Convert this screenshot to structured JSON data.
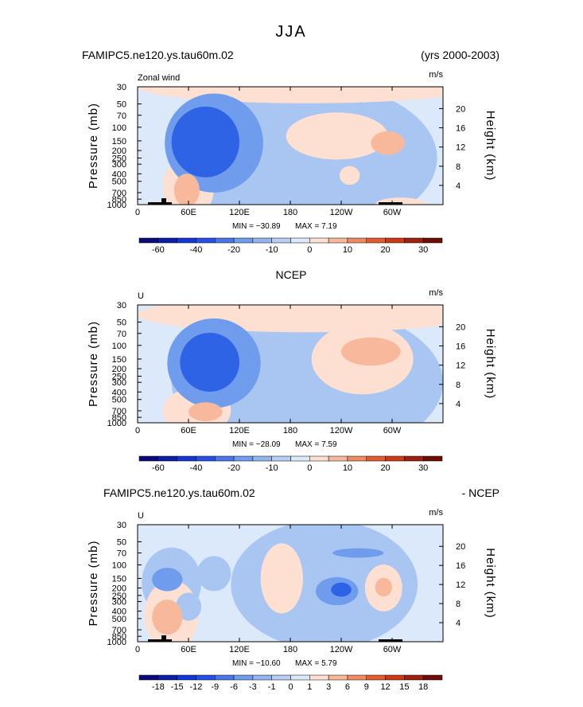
{
  "figure_title": "JJA",
  "chart_data": [
    {
      "type": "heatmap",
      "panel": "model",
      "left_title": "FAMIPC5.ne120.ys.tau60m.02",
      "right_title": "(yrs 2000-2003)",
      "subtitle": "Zonal wind",
      "units": "m/s",
      "ylabel": "Pressure (mb)",
      "ylabel2": "Height (km)",
      "x_ticks": [
        "0",
        "60E",
        "120E",
        "180",
        "120W",
        "60W"
      ],
      "y_ticks": [
        "30",
        "50",
        "70",
        "100",
        "150",
        "200",
        "250",
        "300",
        "400",
        "500",
        "700",
        "850",
        "1000"
      ],
      "y2_ticks": [
        "20",
        "16",
        "12",
        "8",
        "4"
      ],
      "min_label": "MIN = −30.89",
      "max_label": "MAX =   7.19",
      "min": -30.89,
      "max": 7.19,
      "colorbar_labels": [
        "-60",
        "-40",
        "-20",
        "-10",
        "0",
        "10",
        "20",
        "30"
      ],
      "colorbar_levels": [
        -70,
        -60,
        -50,
        -40,
        -30,
        -20,
        -15,
        -10,
        -5,
        0,
        5,
        10,
        15,
        20,
        25,
        30
      ],
      "regions": [
        {
          "lon": 198,
          "p": 250,
          "rx": 155,
          "ry": 0.65,
          "level": -1
        },
        {
          "lon": 90,
          "p": 160,
          "rx": 58,
          "ry": 0.42,
          "level": -2
        },
        {
          "lon": 80,
          "p": 155,
          "rx": 40,
          "ry": 0.3,
          "level": -3
        },
        {
          "lon": 75,
          "p": 150,
          "rx": 25,
          "ry": 0.18,
          "level": -4
        },
        {
          "lon": 235,
          "p": 130,
          "rx": 60,
          "ry": 0.2,
          "level": 1
        },
        {
          "lon": 295,
          "p": 160,
          "rx": 20,
          "ry": 0.1,
          "level": 2
        },
        {
          "lon": 60,
          "p": 600,
          "rx": 30,
          "ry": 0.28,
          "level": 1
        },
        {
          "lon": 58,
          "p": 650,
          "rx": 15,
          "ry": 0.14,
          "level": 2
        },
        {
          "lon": 200,
          "p": 30,
          "rx": 200,
          "ry": 0.14,
          "level": 1
        },
        {
          "lon": 250,
          "p": 420,
          "rx": 12,
          "ry": 0.08,
          "level": 1
        },
        {
          "lon": 310,
          "p": 1000,
          "rx": 30,
          "ry": 0.06,
          "level": 1
        }
      ]
    },
    {
      "type": "heatmap",
      "panel": "observed",
      "center_title": "NCEP",
      "subtitle": "U",
      "units": "m/s",
      "ylabel": "Pressure (mb)",
      "ylabel2": "Height (km)",
      "x_ticks": [
        "0",
        "60E",
        "120E",
        "180",
        "120W",
        "60W"
      ],
      "y_ticks": [
        "30",
        "50",
        "70",
        "100",
        "150",
        "200",
        "250",
        "300",
        "400",
        "500",
        "700",
        "850",
        "1000"
      ],
      "y2_ticks": [
        "20",
        "16",
        "12",
        "8",
        "4"
      ],
      "min_label": "MIN = −28.09",
      "max_label": "MAX =   7.59",
      "min": -28.09,
      "max": 7.59,
      "colorbar_labels": [
        "-60",
        "-40",
        "-20",
        "-10",
        "0",
        "10",
        "20",
        "30"
      ],
      "colorbar_levels": [
        -70,
        -60,
        -50,
        -40,
        -30,
        -20,
        -15,
        -10,
        -5,
        0,
        5,
        10,
        15,
        20,
        25,
        30
      ],
      "regions": [
        {
          "lon": 200,
          "p": 300,
          "rx": 160,
          "ry": 0.65,
          "level": -1
        },
        {
          "lon": 90,
          "p": 170,
          "rx": 55,
          "ry": 0.38,
          "level": -2
        },
        {
          "lon": 85,
          "p": 165,
          "rx": 35,
          "ry": 0.25,
          "level": -3
        },
        {
          "lon": 80,
          "p": 160,
          "rx": 22,
          "ry": 0.15,
          "level": -4
        },
        {
          "lon": 265,
          "p": 150,
          "rx": 60,
          "ry": 0.3,
          "level": 1
        },
        {
          "lon": 275,
          "p": 120,
          "rx": 35,
          "ry": 0.12,
          "level": 2
        },
        {
          "lon": 70,
          "p": 700,
          "rx": 40,
          "ry": 0.2,
          "level": 1
        },
        {
          "lon": 80,
          "p": 720,
          "rx": 20,
          "ry": 0.08,
          "level": 2
        },
        {
          "lon": 200,
          "p": 40,
          "rx": 200,
          "ry": 0.15,
          "level": 1
        }
      ]
    },
    {
      "type": "heatmap",
      "panel": "difference",
      "left_title": "FAMIPC5.ne120.ys.tau60m.02",
      "right_title": "- NCEP",
      "subtitle": "U",
      "units": "m/s",
      "ylabel": "Pressure (mb)",
      "ylabel2": "Height (km)",
      "x_ticks": [
        "0",
        "60E",
        "120E",
        "180",
        "120W",
        "60W"
      ],
      "y_ticks": [
        "30",
        "50",
        "70",
        "100",
        "150",
        "200",
        "250",
        "300",
        "400",
        "500",
        "700",
        "850",
        "1000"
      ],
      "y2_ticks": [
        "20",
        "16",
        "12",
        "8",
        "4"
      ],
      "min_label": "MIN = −10.60",
      "max_label": "MAX =   5.79",
      "min": -10.6,
      "max": 5.79,
      "colorbar_labels": [
        "-18",
        "-15",
        "-12",
        "-9",
        "-6",
        "-3",
        "-1",
        "0",
        "1",
        "3",
        "6",
        "9",
        "12",
        "15",
        "18"
      ],
      "colorbar_levels": [
        -21,
        -18,
        -15,
        -12,
        -9,
        -6,
        -3,
        -1,
        0,
        1,
        3,
        6,
        9,
        12,
        15,
        18
      ],
      "regions": [
        {
          "lon": 220,
          "p": 180,
          "rx": 110,
          "ry": 0.55,
          "level": -1
        },
        {
          "lon": 40,
          "p": 170,
          "rx": 35,
          "ry": 0.3,
          "level": -1
        },
        {
          "lon": 35,
          "p": 155,
          "rx": 18,
          "ry": 0.1,
          "level": -2
        },
        {
          "lon": 235,
          "p": 220,
          "rx": 25,
          "ry": 0.12,
          "level": -2
        },
        {
          "lon": 240,
          "p": 210,
          "rx": 12,
          "ry": 0.06,
          "level": -3
        },
        {
          "lon": 260,
          "p": 70,
          "rx": 30,
          "ry": 0.04,
          "level": -2
        },
        {
          "lon": 170,
          "p": 150,
          "rx": 25,
          "ry": 0.3,
          "level": 1
        },
        {
          "lon": 290,
          "p": 200,
          "rx": 22,
          "ry": 0.2,
          "level": 1
        },
        {
          "lon": 290,
          "p": 195,
          "rx": 10,
          "ry": 0.08,
          "level": 2
        },
        {
          "lon": 40,
          "p": 450,
          "rx": 32,
          "ry": 0.3,
          "level": 1
        },
        {
          "lon": 35,
          "p": 480,
          "rx": 18,
          "ry": 0.15,
          "level": 2
        },
        {
          "lon": 90,
          "p": 130,
          "rx": 20,
          "ry": 0.15,
          "level": -1
        },
        {
          "lon": 60,
          "p": 350,
          "rx": 15,
          "ry": 0.12,
          "level": -1
        }
      ]
    }
  ],
  "colors": {
    "neg": [
      "#dbe9fb",
      "#a9c5f2",
      "#6f9cec",
      "#2e63e6"
    ],
    "pos": [
      "#fde0d2",
      "#f8b89c",
      "#f08a63"
    ],
    "background": "#dbe9fb",
    "colorbar": [
      "#0a0a7a",
      "#0a1fa8",
      "#1337d4",
      "#2550e6",
      "#4a76ea",
      "#6f9cec",
      "#93b6f0",
      "#b7cdf4",
      "#dbe9fb",
      "#fde0d2",
      "#f8b89c",
      "#f08a63",
      "#e55a2e",
      "#cc3a14",
      "#a02010",
      "#6e0c06"
    ],
    "topo": "#000000"
  }
}
